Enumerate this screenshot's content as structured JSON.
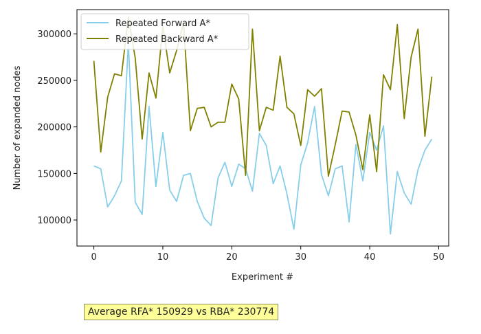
{
  "chart_data": {
    "type": "line",
    "title": "",
    "xlabel": "Experiment #",
    "ylabel": "Number of expanded nodes",
    "xlim": [
      -2.45,
      51.45
    ],
    "ylim": [
      72000,
      326000
    ],
    "xticks": [
      0,
      10,
      20,
      30,
      40,
      50
    ],
    "yticks": [
      100000,
      150000,
      200000,
      250000,
      300000
    ],
    "grid": false,
    "legend_position": "top-left",
    "x": [
      0,
      1,
      2,
      3,
      4,
      5,
      6,
      7,
      8,
      9,
      10,
      11,
      12,
      13,
      14,
      15,
      16,
      17,
      18,
      19,
      20,
      21,
      22,
      23,
      24,
      25,
      26,
      27,
      28,
      29,
      30,
      31,
      32,
      33,
      34,
      35,
      36,
      37,
      38,
      39,
      40,
      41,
      42,
      43,
      44,
      45,
      46,
      47,
      48,
      49
    ],
    "series": [
      {
        "name": "Repeated Forward A*",
        "color": "#87ceeb",
        "values": [
          158000,
          155000,
          114000,
          126000,
          142000,
          291000,
          119000,
          106000,
          222000,
          136000,
          194000,
          132000,
          120000,
          148000,
          150000,
          120000,
          102000,
          94000,
          145000,
          162000,
          136000,
          160000,
          155000,
          131000,
          193000,
          180000,
          139000,
          158000,
          128000,
          90000,
          159000,
          183000,
          222000,
          149000,
          126000,
          155000,
          158000,
          98000,
          181000,
          142000,
          194000,
          175000,
          201000,
          85000,
          152000,
          129000,
          117000,
          154000,
          175000,
          187000
        ]
      },
      {
        "name": "Repeated Backward A*",
        "color": "#808000",
        "values": [
          271000,
          173000,
          232000,
          257000,
          255000,
          318000,
          274000,
          187000,
          258000,
          231000,
          308000,
          258000,
          282000,
          312000,
          196000,
          220000,
          221000,
          200000,
          205000,
          205000,
          246000,
          230000,
          148000,
          305000,
          196000,
          221000,
          218000,
          276000,
          221000,
          214000,
          180000,
          240000,
          233000,
          241000,
          147000,
          181000,
          217000,
          216000,
          191000,
          154000,
          213000,
          152000,
          256000,
          240000,
          310000,
          209000,
          275000,
          305000,
          190000,
          254000
        ]
      }
    ],
    "annotation": "Average RFA* 150929 vs RBA* 230774"
  }
}
